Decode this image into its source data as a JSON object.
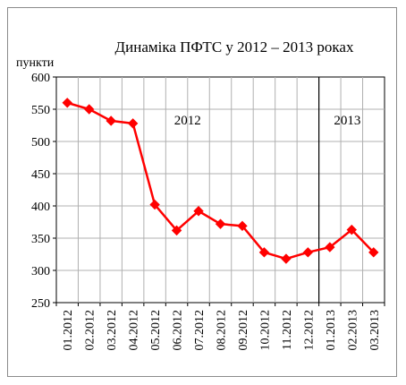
{
  "chart_data": {
    "type": "line",
    "title": "Динаміка ПФТС  у 2012 – 2013 роках",
    "ylabel": "пункти",
    "xlabel": "",
    "ylim": [
      250,
      600
    ],
    "yticks": [
      250,
      300,
      350,
      400,
      450,
      500,
      550,
      600
    ],
    "grid": true,
    "categories": [
      "01.2012",
      "02.2012",
      "03.2012",
      "04.2012",
      "05.2012",
      "06.2012",
      "07.2012",
      "08.2012",
      "09.2012",
      "10.2012",
      "11.2012",
      "12.2012",
      "01.2013",
      "02.2013",
      "03.2013"
    ],
    "series": [
      {
        "values": [
          560,
          550,
          532,
          528,
          402,
          362,
          392,
          372,
          369,
          328,
          318,
          328,
          336,
          363,
          328
        ]
      }
    ],
    "annotations": [
      {
        "text": "2012",
        "at_category_index": 5.5
      },
      {
        "text": "2013",
        "at_category_index": 12.8
      }
    ],
    "divider_between": [
      "12.2012",
      "01.2013"
    ],
    "line_color": "#ff0000",
    "marker": "diamond"
  }
}
